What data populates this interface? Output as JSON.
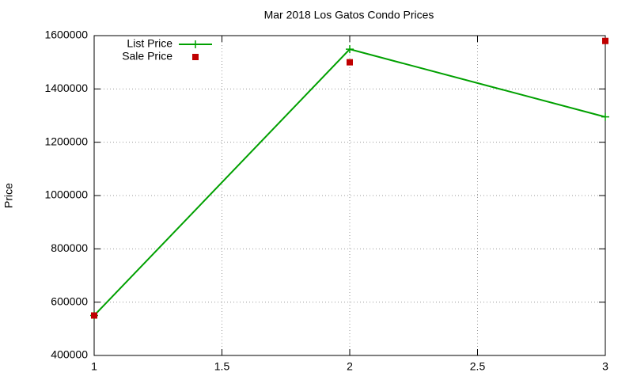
{
  "chart_data": {
    "type": "line",
    "title": "Mar 2018 Los Gatos Condo Prices",
    "ylabel": "Price",
    "x": [
      1,
      2,
      3
    ],
    "series": [
      {
        "name": "List Price",
        "color": "#00a000",
        "mode": "lines+points",
        "values": [
          550000,
          1549000,
          1295000
        ]
      },
      {
        "name": "Sale Price",
        "color": "#c00000",
        "mode": "points",
        "values": [
          550000,
          1500000,
          1580000
        ]
      }
    ],
    "xlim": [
      1,
      3
    ],
    "xticks": [
      1,
      1.5,
      2,
      2.5,
      3
    ],
    "ylim": [
      400000,
      1600000
    ],
    "yticks": [
      400000,
      600000,
      800000,
      1000000,
      1200000,
      1400000,
      1600000
    ],
    "grid": true,
    "legend": "top-left"
  }
}
